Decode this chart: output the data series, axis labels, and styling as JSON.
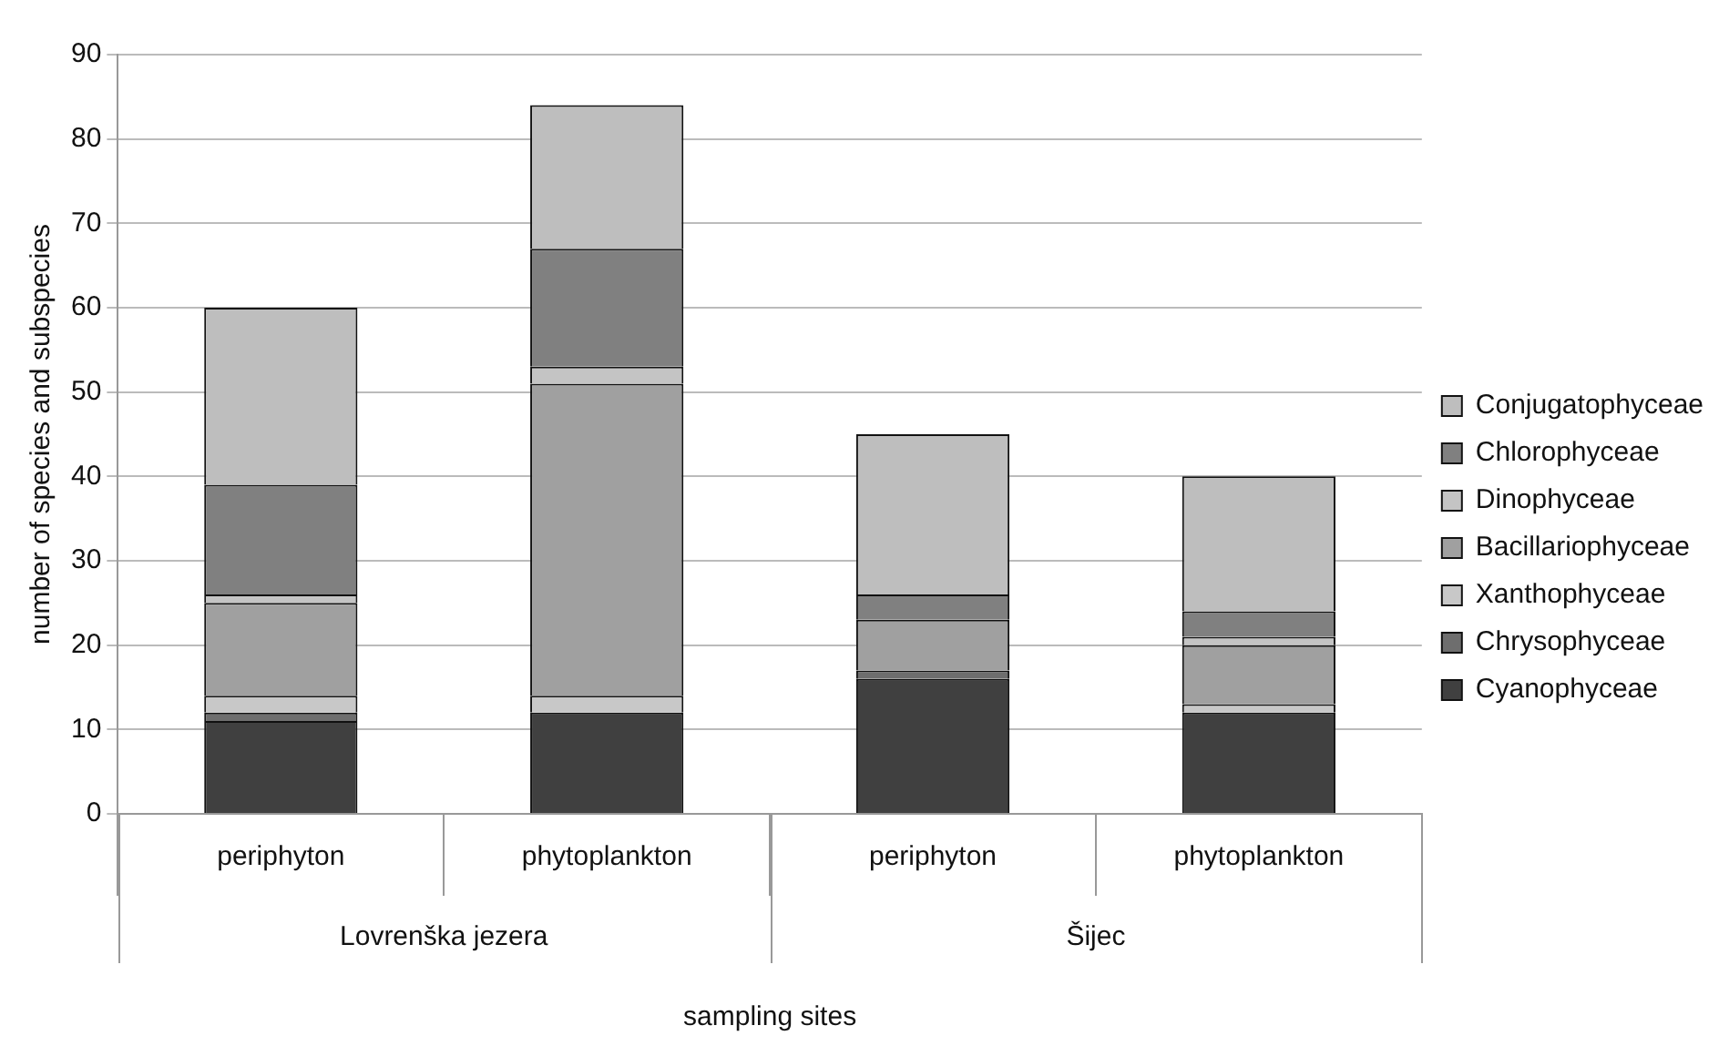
{
  "chart_data": {
    "type": "bar",
    "stacked": true,
    "xlabel": "sampling sites",
    "ylabel": "number of species and subspecies",
    "categories": [
      "periphyton",
      "phytoplankton",
      "periphyton",
      "phytoplankton"
    ],
    "annotations": [
      "Lovrenška jezera",
      "Šijec"
    ],
    "series": [
      {
        "name": "Cyanophyceae",
        "color": "#404040",
        "values": [
          11,
          12,
          16,
          12
        ]
      },
      {
        "name": "Chrysophyceae",
        "color": "#6e6e6e",
        "values": [
          1,
          0,
          1,
          0
        ]
      },
      {
        "name": "Xanthophyceae",
        "color": "#c8c8c8",
        "values": [
          2,
          2,
          0,
          1
        ]
      },
      {
        "name": "Bacillariophyceae",
        "color": "#a0a0a0",
        "values": [
          11,
          37,
          6,
          7
        ]
      },
      {
        "name": "Dinophyceae",
        "color": "#c4c4c4",
        "values": [
          1,
          2,
          0,
          1
        ]
      },
      {
        "name": "Chlorophyceae",
        "color": "#808080",
        "values": [
          13,
          14,
          3,
          3
        ]
      },
      {
        "name": "Conjugatophyceae",
        "color": "#bebebe",
        "values": [
          21,
          17,
          19,
          16
        ]
      }
    ],
    "ylim": [
      0,
      90
    ],
    "yticks": [
      0,
      10,
      20,
      30,
      40,
      50,
      60,
      70,
      80,
      90
    ],
    "grid": "y",
    "legend": "right"
  }
}
